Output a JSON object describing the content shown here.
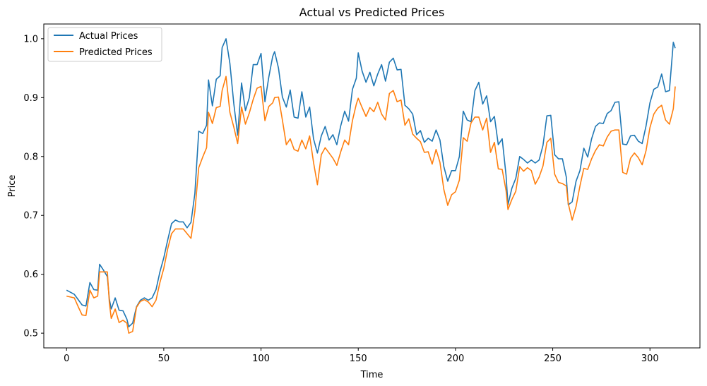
{
  "chart_data": {
    "type": "line",
    "title": "Actual vs Predicted Prices",
    "xlabel": "Time",
    "ylabel": "Price",
    "xlim": [
      -11.7,
      325.7
    ],
    "ylim": [
      0.475,
      1.025
    ],
    "xticks": [
      0,
      50,
      100,
      150,
      200,
      250,
      300
    ],
    "yticks": [
      0.5,
      0.6,
      0.7,
      0.8,
      0.9,
      1.0
    ],
    "grid": false,
    "legend_position": "top-left",
    "series": [
      {
        "name": "Actual Prices",
        "color": "#1f77b4",
        "points": [
          [
            0,
            0.573
          ],
          [
            4,
            0.566
          ],
          [
            6,
            0.557
          ],
          [
            8,
            0.548
          ],
          [
            10,
            0.546
          ],
          [
            12,
            0.586
          ],
          [
            14,
            0.574
          ],
          [
            16,
            0.573
          ],
          [
            17,
            0.617
          ],
          [
            19,
            0.607
          ],
          [
            21,
            0.596
          ],
          [
            22,
            0.558
          ],
          [
            23,
            0.541
          ],
          [
            25,
            0.56
          ],
          [
            27,
            0.539
          ],
          [
            29,
            0.538
          ],
          [
            31,
            0.524
          ],
          [
            32,
            0.511
          ],
          [
            34,
            0.517
          ],
          [
            36,
            0.545
          ],
          [
            38,
            0.556
          ],
          [
            40,
            0.56
          ],
          [
            42,
            0.556
          ],
          [
            44,
            0.56
          ],
          [
            46,
            0.574
          ],
          [
            48,
            0.604
          ],
          [
            50,
            0.628
          ],
          [
            52,
            0.658
          ],
          [
            54,
            0.686
          ],
          [
            56,
            0.692
          ],
          [
            58,
            0.689
          ],
          [
            60,
            0.689
          ],
          [
            62,
            0.679
          ],
          [
            64,
            0.688
          ],
          [
            66,
            0.737
          ],
          [
            68,
            0.843
          ],
          [
            70,
            0.839
          ],
          [
            72,
            0.853
          ],
          [
            73,
            0.93
          ],
          [
            75,
            0.886
          ],
          [
            77,
            0.931
          ],
          [
            79,
            0.937
          ],
          [
            80,
            0.985
          ],
          [
            82,
            1.0
          ],
          [
            84,
            0.958
          ],
          [
            86,
            0.89
          ],
          [
            88,
            0.836
          ],
          [
            90,
            0.925
          ],
          [
            92,
            0.878
          ],
          [
            94,
            0.9
          ],
          [
            96,
            0.956
          ],
          [
            98,
            0.956
          ],
          [
            100,
            0.975
          ],
          [
            102,
            0.893
          ],
          [
            104,
            0.935
          ],
          [
            106,
            0.97
          ],
          [
            107,
            0.978
          ],
          [
            109,
            0.95
          ],
          [
            111,
            0.901
          ],
          [
            113,
            0.884
          ],
          [
            115,
            0.913
          ],
          [
            117,
            0.867
          ],
          [
            119,
            0.865
          ],
          [
            121,
            0.91
          ],
          [
            123,
            0.867
          ],
          [
            125,
            0.884
          ],
          [
            127,
            0.83
          ],
          [
            129,
            0.806
          ],
          [
            131,
            0.835
          ],
          [
            133,
            0.851
          ],
          [
            135,
            0.828
          ],
          [
            137,
            0.837
          ],
          [
            139,
            0.82
          ],
          [
            141,
            0.852
          ],
          [
            143,
            0.877
          ],
          [
            145,
            0.86
          ],
          [
            147,
            0.914
          ],
          [
            149,
            0.933
          ],
          [
            150,
            0.976
          ],
          [
            152,
            0.945
          ],
          [
            154,
            0.926
          ],
          [
            156,
            0.943
          ],
          [
            158,
            0.92
          ],
          [
            160,
            0.94
          ],
          [
            162,
            0.956
          ],
          [
            164,
            0.928
          ],
          [
            166,
            0.96
          ],
          [
            168,
            0.967
          ],
          [
            170,
            0.947
          ],
          [
            172,
            0.948
          ],
          [
            174,
            0.887
          ],
          [
            176,
            0.881
          ],
          [
            178,
            0.872
          ],
          [
            180,
            0.837
          ],
          [
            182,
            0.844
          ],
          [
            184,
            0.824
          ],
          [
            186,
            0.831
          ],
          [
            188,
            0.826
          ],
          [
            190,
            0.845
          ],
          [
            192,
            0.828
          ],
          [
            194,
            0.783
          ],
          [
            196,
            0.758
          ],
          [
            198,
            0.776
          ],
          [
            200,
            0.776
          ],
          [
            202,
            0.8
          ],
          [
            204,
            0.877
          ],
          [
            206,
            0.862
          ],
          [
            208,
            0.859
          ],
          [
            210,
            0.912
          ],
          [
            212,
            0.926
          ],
          [
            214,
            0.889
          ],
          [
            216,
            0.903
          ],
          [
            218,
            0.859
          ],
          [
            220,
            0.868
          ],
          [
            222,
            0.82
          ],
          [
            224,
            0.83
          ],
          [
            226,
            0.768
          ],
          [
            227,
            0.718
          ],
          [
            229,
            0.746
          ],
          [
            231,
            0.763
          ],
          [
            233,
            0.8
          ],
          [
            235,
            0.795
          ],
          [
            237,
            0.789
          ],
          [
            239,
            0.794
          ],
          [
            241,
            0.789
          ],
          [
            243,
            0.794
          ],
          [
            245,
            0.819
          ],
          [
            247,
            0.869
          ],
          [
            249,
            0.87
          ],
          [
            251,
            0.803
          ],
          [
            253,
            0.796
          ],
          [
            255,
            0.796
          ],
          [
            257,
            0.765
          ],
          [
            258,
            0.718
          ],
          [
            260,
            0.723
          ],
          [
            262,
            0.758
          ],
          [
            264,
            0.776
          ],
          [
            266,
            0.814
          ],
          [
            268,
            0.799
          ],
          [
            270,
            0.83
          ],
          [
            272,
            0.851
          ],
          [
            274,
            0.857
          ],
          [
            276,
            0.856
          ],
          [
            278,
            0.873
          ],
          [
            280,
            0.878
          ],
          [
            282,
            0.892
          ],
          [
            284,
            0.893
          ],
          [
            286,
            0.821
          ],
          [
            288,
            0.82
          ],
          [
            290,
            0.835
          ],
          [
            292,
            0.836
          ],
          [
            294,
            0.826
          ],
          [
            296,
            0.822
          ],
          [
            298,
            0.852
          ],
          [
            300,
            0.891
          ],
          [
            302,
            0.914
          ],
          [
            304,
            0.918
          ],
          [
            306,
            0.94
          ],
          [
            308,
            0.91
          ],
          [
            310,
            0.912
          ],
          [
            312,
            0.994
          ],
          [
            313,
            0.984
          ]
        ]
      },
      {
        "name": "Predicted Prices",
        "color": "#ff7f0e",
        "points": [
          [
            0,
            0.563
          ],
          [
            4,
            0.56
          ],
          [
            6,
            0.545
          ],
          [
            8,
            0.531
          ],
          [
            10,
            0.53
          ],
          [
            12,
            0.573
          ],
          [
            14,
            0.56
          ],
          [
            16,
            0.563
          ],
          [
            17,
            0.604
          ],
          [
            19,
            0.604
          ],
          [
            21,
            0.604
          ],
          [
            22,
            0.552
          ],
          [
            23,
            0.525
          ],
          [
            25,
            0.541
          ],
          [
            27,
            0.518
          ],
          [
            29,
            0.522
          ],
          [
            31,
            0.517
          ],
          [
            32,
            0.5
          ],
          [
            34,
            0.503
          ],
          [
            36,
            0.544
          ],
          [
            38,
            0.554
          ],
          [
            40,
            0.557
          ],
          [
            42,
            0.553
          ],
          [
            44,
            0.545
          ],
          [
            46,
            0.556
          ],
          [
            48,
            0.586
          ],
          [
            50,
            0.61
          ],
          [
            52,
            0.643
          ],
          [
            54,
            0.669
          ],
          [
            56,
            0.677
          ],
          [
            58,
            0.677
          ],
          [
            60,
            0.677
          ],
          [
            62,
            0.669
          ],
          [
            64,
            0.661
          ],
          [
            66,
            0.707
          ],
          [
            68,
            0.781
          ],
          [
            70,
            0.799
          ],
          [
            72,
            0.815
          ],
          [
            73,
            0.875
          ],
          [
            75,
            0.856
          ],
          [
            77,
            0.883
          ],
          [
            79,
            0.885
          ],
          [
            80,
            0.912
          ],
          [
            82,
            0.936
          ],
          [
            84,
            0.875
          ],
          [
            86,
            0.85
          ],
          [
            88,
            0.822
          ],
          [
            90,
            0.884
          ],
          [
            92,
            0.855
          ],
          [
            94,
            0.874
          ],
          [
            96,
            0.897
          ],
          [
            98,
            0.916
          ],
          [
            100,
            0.919
          ],
          [
            102,
            0.861
          ],
          [
            104,
            0.885
          ],
          [
            106,
            0.891
          ],
          [
            107,
            0.9
          ],
          [
            109,
            0.901
          ],
          [
            111,
            0.862
          ],
          [
            113,
            0.82
          ],
          [
            115,
            0.83
          ],
          [
            117,
            0.812
          ],
          [
            119,
            0.809
          ],
          [
            121,
            0.828
          ],
          [
            123,
            0.813
          ],
          [
            125,
            0.835
          ],
          [
            127,
            0.79
          ],
          [
            129,
            0.752
          ],
          [
            131,
            0.803
          ],
          [
            133,
            0.815
          ],
          [
            135,
            0.806
          ],
          [
            137,
            0.797
          ],
          [
            139,
            0.785
          ],
          [
            141,
            0.808
          ],
          [
            143,
            0.828
          ],
          [
            145,
            0.82
          ],
          [
            147,
            0.861
          ],
          [
            149,
            0.889
          ],
          [
            150,
            0.899
          ],
          [
            152,
            0.883
          ],
          [
            154,
            0.868
          ],
          [
            156,
            0.883
          ],
          [
            158,
            0.876
          ],
          [
            160,
            0.892
          ],
          [
            162,
            0.872
          ],
          [
            164,
            0.862
          ],
          [
            166,
            0.907
          ],
          [
            168,
            0.912
          ],
          [
            170,
            0.893
          ],
          [
            172,
            0.896
          ],
          [
            174,
            0.853
          ],
          [
            176,
            0.864
          ],
          [
            178,
            0.838
          ],
          [
            180,
            0.831
          ],
          [
            182,
            0.825
          ],
          [
            184,
            0.807
          ],
          [
            186,
            0.808
          ],
          [
            188,
            0.787
          ],
          [
            190,
            0.812
          ],
          [
            192,
            0.79
          ],
          [
            194,
            0.744
          ],
          [
            196,
            0.717
          ],
          [
            198,
            0.735
          ],
          [
            200,
            0.74
          ],
          [
            202,
            0.76
          ],
          [
            204,
            0.832
          ],
          [
            206,
            0.826
          ],
          [
            208,
            0.857
          ],
          [
            210,
            0.867
          ],
          [
            212,
            0.867
          ],
          [
            214,
            0.845
          ],
          [
            216,
            0.865
          ],
          [
            218,
            0.807
          ],
          [
            220,
            0.824
          ],
          [
            222,
            0.779
          ],
          [
            224,
            0.778
          ],
          [
            226,
            0.742
          ],
          [
            227,
            0.71
          ],
          [
            229,
            0.727
          ],
          [
            231,
            0.741
          ],
          [
            233,
            0.783
          ],
          [
            235,
            0.775
          ],
          [
            237,
            0.781
          ],
          [
            239,
            0.776
          ],
          [
            241,
            0.753
          ],
          [
            243,
            0.765
          ],
          [
            245,
            0.784
          ],
          [
            247,
            0.824
          ],
          [
            249,
            0.831
          ],
          [
            251,
            0.77
          ],
          [
            253,
            0.756
          ],
          [
            255,
            0.754
          ],
          [
            257,
            0.75
          ],
          [
            258,
            0.72
          ],
          [
            260,
            0.692
          ],
          [
            262,
            0.715
          ],
          [
            264,
            0.75
          ],
          [
            266,
            0.78
          ],
          [
            268,
            0.778
          ],
          [
            270,
            0.796
          ],
          [
            272,
            0.81
          ],
          [
            274,
            0.82
          ],
          [
            276,
            0.818
          ],
          [
            278,
            0.833
          ],
          [
            280,
            0.843
          ],
          [
            282,
            0.845
          ],
          [
            284,
            0.845
          ],
          [
            286,
            0.773
          ],
          [
            288,
            0.77
          ],
          [
            290,
            0.797
          ],
          [
            292,
            0.806
          ],
          [
            294,
            0.798
          ],
          [
            296,
            0.786
          ],
          [
            298,
            0.81
          ],
          [
            300,
            0.849
          ],
          [
            302,
            0.872
          ],
          [
            304,
            0.882
          ],
          [
            306,
            0.887
          ],
          [
            308,
            0.862
          ],
          [
            310,
            0.855
          ],
          [
            312,
            0.881
          ],
          [
            313,
            0.919
          ]
        ]
      }
    ]
  }
}
